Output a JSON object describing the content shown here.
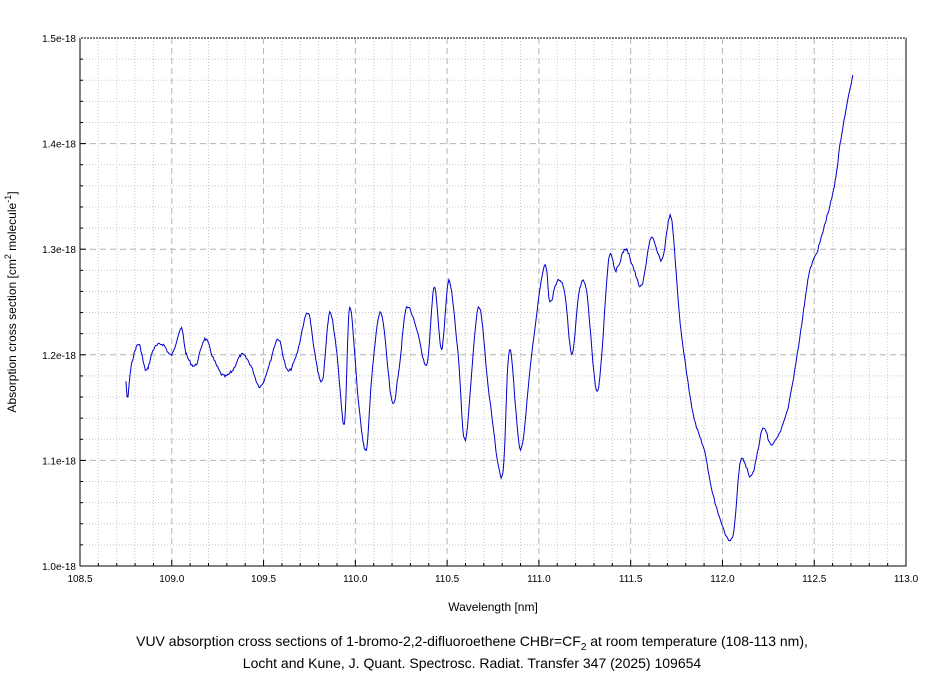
{
  "caption": {
    "line1_prefix": "VUV absorption cross sections of 1-bromo-2,2-difluoroethene CHBr=CF",
    "line1_sub": "2",
    "line1_suffix": " at room temperature (108-113 nm),",
    "line2": "Locht and Kune, J. Quant. Spectrosc. Radiat. Transfer 347 (2025) 109654"
  },
  "chart_data": {
    "type": "line",
    "title": "",
    "xlabel": "Wavelength [nm]",
    "ylabel": {
      "text1": "Absorption cross section [cm",
      "sup1": "2",
      "text2": " molecule",
      "sup2": "-1",
      "text3": "]"
    },
    "xlim": [
      108.5,
      113.0
    ],
    "ylim": [
      1e-18,
      1.5e-18
    ],
    "x_ticks": [
      108.5,
      109.0,
      109.5,
      110.0,
      110.5,
      111.0,
      111.5,
      112.0,
      112.5,
      113.0
    ],
    "x_tick_labels": [
      "108.5",
      "109.0",
      "109.5",
      "110.0",
      "110.5",
      "111.0",
      "111.5",
      "112.0",
      "112.5",
      "113.0"
    ],
    "y_ticks": [
      1e-18,
      1.1e-18,
      1.2e-18,
      1.3e-18,
      1.4e-18,
      1.5e-18
    ],
    "y_tick_labels": [
      "1.0e-18",
      "1.1e-18",
      "1.2e-18",
      "1.3e-18",
      "1.4e-18",
      "1.5e-18"
    ],
    "grid": true,
    "line_color": "#0000cc",
    "series": [
      {
        "x": [
          108.75,
          108.76,
          108.78,
          108.82,
          108.86,
          108.9,
          108.95,
          109.0,
          109.05,
          109.08,
          109.13,
          109.18,
          109.23,
          109.28,
          109.33,
          109.38,
          109.43,
          109.48,
          109.53,
          109.58,
          109.63,
          109.68,
          109.74,
          109.78,
          109.82,
          109.86,
          109.9,
          109.94,
          109.97,
          110.02,
          110.06,
          110.09,
          110.14,
          110.2,
          110.24,
          110.28,
          110.34,
          110.39,
          110.43,
          110.47,
          110.51,
          110.56,
          110.6,
          110.67,
          110.73,
          110.8,
          110.84,
          110.9,
          110.96,
          111.03,
          111.06,
          111.1,
          111.14,
          111.18,
          111.22,
          111.26,
          111.32,
          111.38,
          111.42,
          111.47,
          111.51,
          111.56,
          111.61,
          111.67,
          111.72,
          111.77,
          111.84,
          111.9,
          111.96,
          112.05,
          112.1,
          112.16,
          112.22,
          112.27,
          112.35,
          112.42,
          112.47,
          112.52,
          112.56,
          112.61,
          112.65,
          112.71
        ],
        "y": [
          1.175e-18,
          1.16e-18,
          1.19e-18,
          1.21e-18,
          1.185e-18,
          1.205e-18,
          1.21e-18,
          1.2e-18,
          1.225e-18,
          1.2e-18,
          1.19e-18,
          1.215e-18,
          1.195e-18,
          1.18e-18,
          1.185e-18,
          1.2e-18,
          1.19e-18,
          1.17e-18,
          1.19e-18,
          1.215e-18,
          1.185e-18,
          1.2e-18,
          1.24e-18,
          1.2e-18,
          1.175e-18,
          1.24e-18,
          1.2e-18,
          1.135e-18,
          1.245e-18,
          1.15e-18,
          1.11e-18,
          1.18e-18,
          1.24e-18,
          1.155e-18,
          1.19e-18,
          1.245e-18,
          1.22e-18,
          1.19e-18,
          1.265e-18,
          1.205e-18,
          1.27e-18,
          1.2e-18,
          1.12e-18,
          1.245e-18,
          1.16e-18,
          1.085e-18,
          1.205e-18,
          1.11e-18,
          1.2e-18,
          1.285e-18,
          1.25e-18,
          1.27e-18,
          1.26e-18,
          1.2e-18,
          1.26e-18,
          1.26e-18,
          1.165e-18,
          1.29e-18,
          1.28e-18,
          1.3e-18,
          1.285e-18,
          1.265e-18,
          1.31e-18,
          1.29e-18,
          1.33e-18,
          1.23e-18,
          1.145e-18,
          1.11e-18,
          1.06e-18,
          1.025e-18,
          1.1e-18,
          1.085e-18,
          1.13e-18,
          1.115e-18,
          1.145e-18,
          1.215e-18,
          1.275e-18,
          1.3e-18,
          1.325e-18,
          1.36e-18,
          1.41e-18,
          1.465e-18
        ]
      }
    ]
  }
}
